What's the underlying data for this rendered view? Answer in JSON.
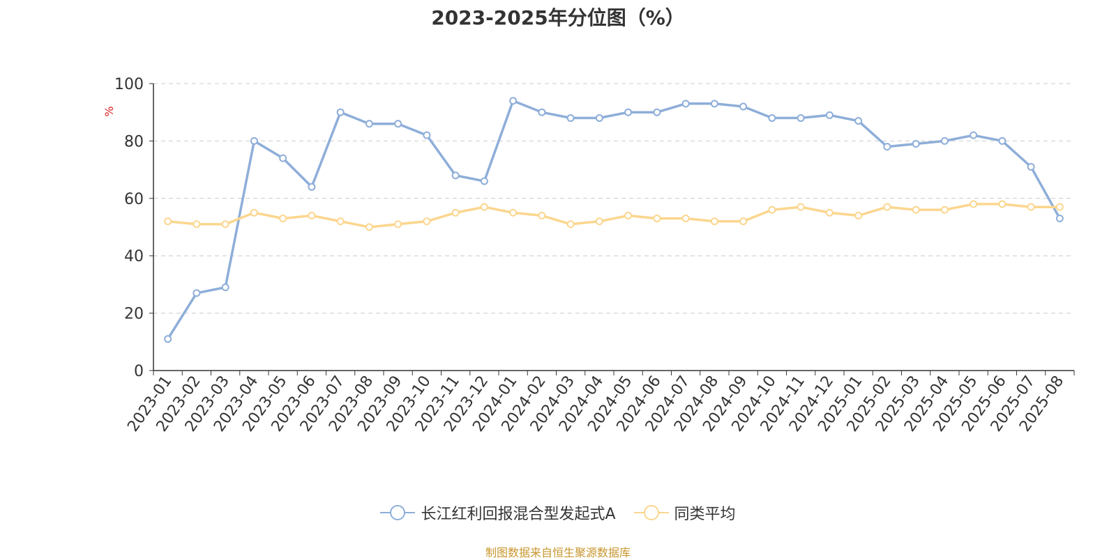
{
  "chart_data": {
    "type": "line",
    "title": "2023-2025年分位图（%）",
    "ylabel": "%",
    "xlabel": "",
    "ylim": [
      0,
      100
    ],
    "yticks": [
      0,
      20,
      40,
      60,
      80,
      100
    ],
    "grid": true,
    "legend_position": "bottom",
    "categories": [
      "2023-01",
      "2023-02",
      "2023-03",
      "2023-04",
      "2023-05",
      "2023-06",
      "2023-07",
      "2023-08",
      "2023-09",
      "2023-10",
      "2023-11",
      "2023-12",
      "2024-01",
      "2024-02",
      "2024-03",
      "2024-04",
      "2024-05",
      "2024-06",
      "2024-07",
      "2024-08",
      "2024-09",
      "2024-10",
      "2024-11",
      "2024-12",
      "2025-01",
      "2025-02",
      "2025-03",
      "2025-04",
      "2025-05",
      "2025-06",
      "2025-07",
      "2025-08"
    ],
    "series": [
      {
        "name": "长江红利回报混合型发起式A",
        "color": "#8eaed9",
        "values": [
          11,
          27,
          29,
          80,
          74,
          64,
          90,
          86,
          86,
          82,
          68,
          66,
          94,
          90,
          88,
          88,
          90,
          90,
          93,
          93,
          92,
          88,
          88,
          89,
          87,
          78,
          79,
          80,
          82,
          80,
          71,
          53
        ]
      },
      {
        "name": "同类平均",
        "color": "#fbd68e",
        "values": [
          52,
          51,
          51,
          55,
          53,
          54,
          52,
          50,
          51,
          52,
          55,
          57,
          55,
          54,
          51,
          52,
          54,
          53,
          53,
          52,
          52,
          56,
          57,
          55,
          54,
          57,
          56,
          56,
          58,
          58,
          57,
          57
        ]
      }
    ]
  },
  "footer": {
    "source": "制图数据来自恒生聚源数据库"
  }
}
